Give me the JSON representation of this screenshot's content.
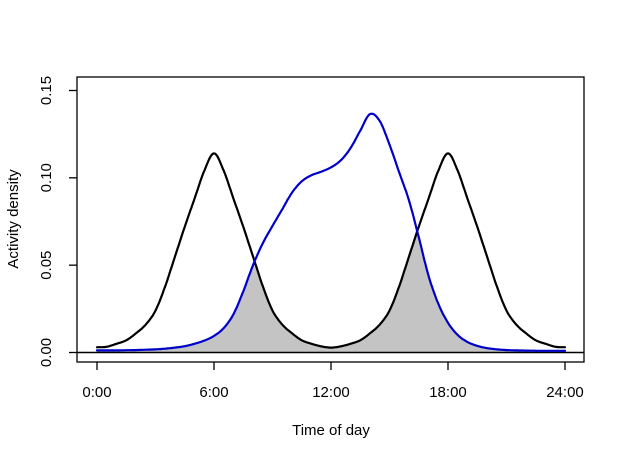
{
  "window": {
    "background": "#ffffff"
  },
  "chart_data": {
    "type": "line",
    "title": "",
    "xlabel": "Time of day",
    "ylabel": "Activity density",
    "xlim": [
      0,
      24
    ],
    "ylim": [
      -0.0057,
      0.1574
    ],
    "grid": "off",
    "legend": "none",
    "zero_line": true,
    "x_ticks": {
      "positions": [
        0,
        6,
        12,
        18,
        24
      ],
      "labels": [
        "0:00",
        "6:00",
        "12:00",
        "18:00",
        "24:00"
      ]
    },
    "y_ticks": {
      "positions": [
        0,
        0.05,
        0.1,
        0.15
      ],
      "labels": [
        "0.00",
        "0.05",
        "0.10",
        "0.15"
      ]
    },
    "x_start": 0,
    "x_step_hours": 0.5,
    "series": [
      {
        "name": "black-bimodal-curve",
        "color": "#000000",
        "peaks": [
          {
            "t": 6,
            "v": 0.114
          },
          {
            "t": 18,
            "v": 0.114
          }
        ],
        "values": [
          0.003,
          0.0033,
          0.005,
          0.007,
          0.011,
          0.016,
          0.024,
          0.038,
          0.055,
          0.072,
          0.088,
          0.104,
          0.114,
          0.104,
          0.088,
          0.072,
          0.055,
          0.038,
          0.024,
          0.016,
          0.011,
          0.007,
          0.005,
          0.0035,
          0.0028,
          0.0035,
          0.005,
          0.007,
          0.011,
          0.016,
          0.024,
          0.038,
          0.055,
          0.072,
          0.088,
          0.104,
          0.114,
          0.104,
          0.088,
          0.072,
          0.055,
          0.038,
          0.024,
          0.016,
          0.011,
          0.007,
          0.005,
          0.0033,
          0.003
        ]
      },
      {
        "name": "blue-unimodal-curve",
        "color": "#0000CC",
        "peaks": [
          {
            "t": 14,
            "v": 0.1365
          }
        ],
        "values": [
          0.0012,
          0.0012,
          0.0012,
          0.0013,
          0.0014,
          0.0016,
          0.0018,
          0.0022,
          0.0028,
          0.0036,
          0.005,
          0.0068,
          0.0095,
          0.014,
          0.022,
          0.035,
          0.05,
          0.0625,
          0.0725,
          0.082,
          0.0915,
          0.098,
          0.1015,
          0.1035,
          0.106,
          0.11,
          0.117,
          0.127,
          0.1365,
          0.1325,
          0.119,
          0.103,
          0.087,
          0.066,
          0.044,
          0.028,
          0.017,
          0.01,
          0.006,
          0.0038,
          0.0025,
          0.0018,
          0.0014,
          0.0012,
          0.0011,
          0.001,
          0.001,
          0.001,
          0.001
        ]
      }
    ],
    "overlap_fill": {
      "color": "#C4C4C4",
      "description": "shaded area under the lower of the two curves (activity overlap)"
    }
  }
}
